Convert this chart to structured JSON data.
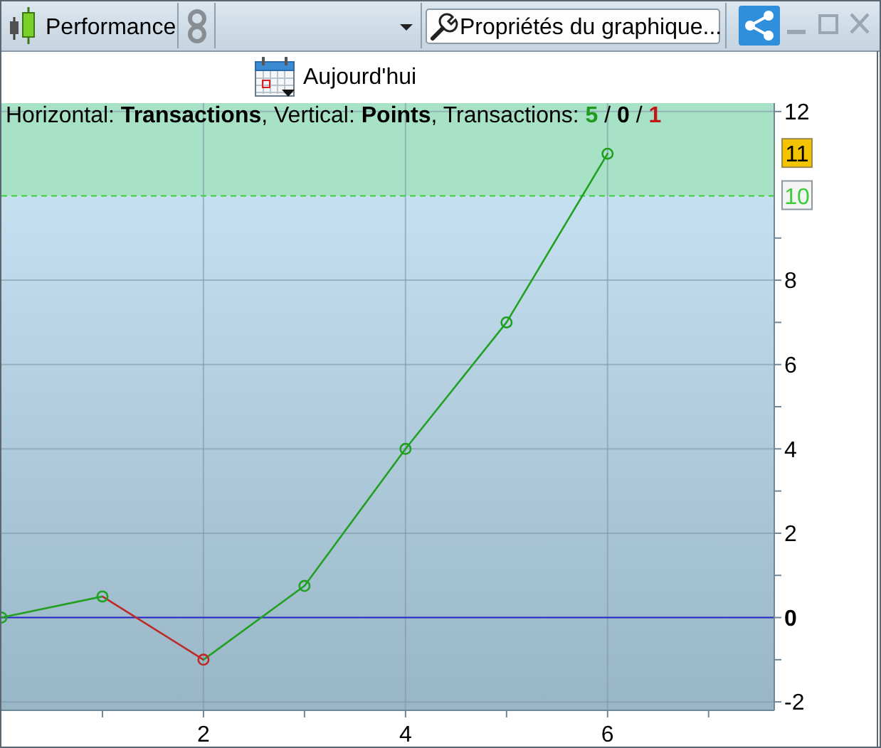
{
  "chart_data": {
    "type": "line",
    "title": "Performance",
    "x": [
      0,
      1,
      2,
      3,
      4,
      5,
      6
    ],
    "series": [
      {
        "values": [
          0,
          0.5,
          -1,
          0.75,
          4,
          7,
          11
        ],
        "colors": [
          "#22a022",
          "#22a022",
          "#c02828",
          "#22a022",
          "#22a022",
          "#22a022",
          "#22a022"
        ]
      }
    ],
    "xlim": [
      0,
      7.65
    ],
    "xticks": [
      {
        "value": 1,
        "label": null
      },
      2,
      {
        "value": 3,
        "label": null
      },
      4,
      {
        "value": 5,
        "label": null
      },
      6,
      {
        "value": 7,
        "label": null
      }
    ],
    "ylim": [
      -2.2,
      12.2
    ],
    "yticks": [
      -2,
      {
        "value": -1,
        "label": null
      },
      0,
      {
        "value": 1,
        "label": null
      },
      2,
      {
        "value": 3,
        "label": null
      },
      4,
      {
        "value": 5,
        "label": null
      },
      6,
      {
        "value": 7,
        "label": null
      },
      8,
      {
        "value": 9,
        "label": null
      },
      12
    ],
    "grid": true,
    "marker": "circle",
    "line_style": "solid",
    "ref_lines": [
      {
        "axis": "y",
        "value": 0,
        "color": "#2828c8"
      },
      {
        "axis": "y",
        "value": 10,
        "label": "10",
        "color": "#3ccc3c",
        "line_style": "dashed"
      }
    ],
    "bands": [
      {
        "axis": "y",
        "from": 10,
        "to": 12.2,
        "color": "#a8e2c6"
      }
    ],
    "annotations": [
      "Horizontal: Transactions, Vertical: Points, Transactions: 5 / 0 / 1",
      "Propriétés du graphique...",
      "Aujourd'hui",
      "11"
    ]
  }
}
